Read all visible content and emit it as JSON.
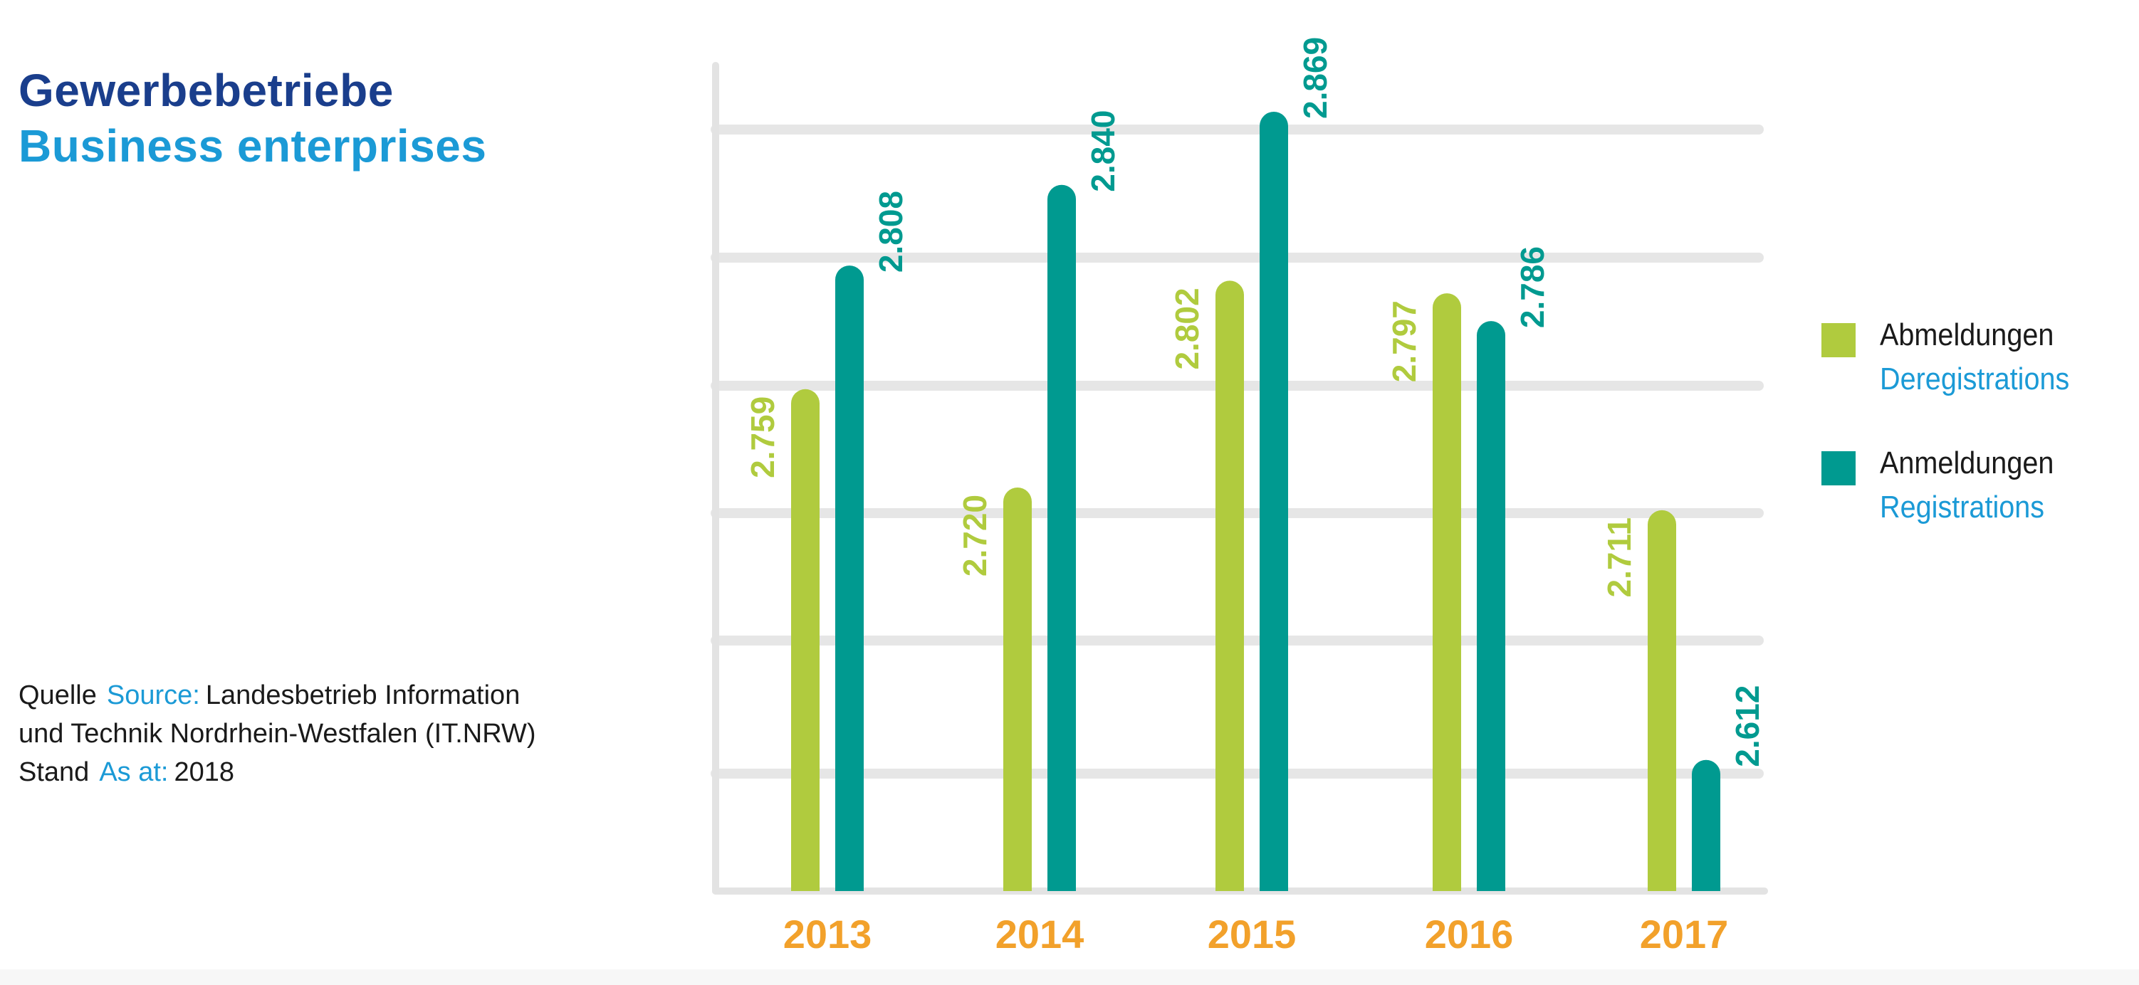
{
  "colors": {
    "title_de": "#1a3e8c",
    "accent_blue": "#1b9ad6",
    "deregistrations": "#b0cb3e",
    "registrations": "#009a90",
    "year_label": "#f2a12b",
    "grid": "#e6e6e6",
    "axis": "#e3e3e3"
  },
  "title": {
    "de": "Gewerbebetriebe",
    "en": "Business enterprises"
  },
  "source": {
    "line1_label_de": "Quelle",
    "line1_label_en": "Source:",
    "line1_text": "Landesbetrieb Information",
    "line2_text": "und Technik Nordrhein-Westfalen (IT.NRW)",
    "line3_label_de": "Stand",
    "line3_label_en": "As at:",
    "line3_value": "2018"
  },
  "legend": [
    {
      "de": "Abmeldungen",
      "en": "Deregistrations",
      "color": "#b0cb3e"
    },
    {
      "de": "Anmeldungen",
      "en": "Registrations",
      "color": "#009a90"
    }
  ],
  "chart_data": {
    "type": "bar",
    "categories": [
      "2013",
      "2014",
      "2015",
      "2016",
      "2017"
    ],
    "series": [
      {
        "name": "Abmeldungen / Deregistrations",
        "values": [
          2759,
          2720,
          2802,
          2797,
          2711
        ],
        "labels": [
          "2.759",
          "2.720",
          "2.802",
          "2.797",
          "2.711"
        ],
        "color": "#b0cb3e"
      },
      {
        "name": "Anmeldungen / Registrations",
        "values": [
          2808,
          2840,
          2869,
          2786,
          2612
        ],
        "labels": [
          "2.808",
          "2.840",
          "2.869",
          "2.786",
          "2.612"
        ],
        "color": "#009a90"
      }
    ],
    "ylim": [
      2560,
      2880
    ],
    "grid": true,
    "legend_position": "right",
    "title": "Gewerbebetriebe / Business enterprises",
    "xlabel": "",
    "ylabel": ""
  }
}
